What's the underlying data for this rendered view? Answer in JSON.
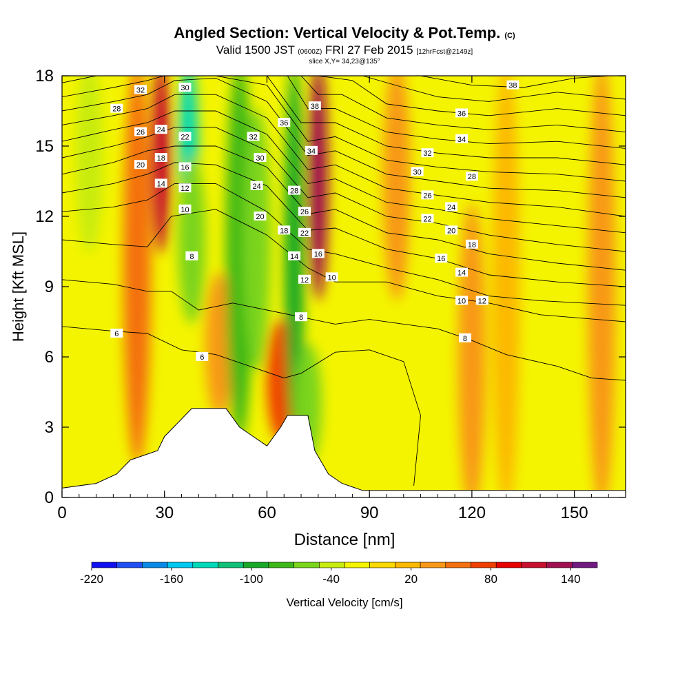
{
  "title": {
    "main": "Angled Section: Vertical Velocity & Pot.Temp.",
    "main_suffix": "(C)",
    "valid_a": "Valid 1500 JST",
    "valid_b": "(0600Z)",
    "valid_c": "FRI 27 Feb 2015",
    "valid_d": "[12hrFcst@2149z]",
    "slice": "slice X,Y= 34,23@135°"
  },
  "chart_data": {
    "type": "heatmap",
    "xlabel": "Distance [nm]",
    "ylabel": "Height [Kft MSL]",
    "xlim": [
      0,
      165
    ],
    "ylim": [
      0,
      18
    ],
    "x_ticks": [
      0,
      30,
      60,
      90,
      120,
      150
    ],
    "y_ticks": [
      0,
      3,
      6,
      9,
      12,
      15,
      18
    ],
    "colorbar": {
      "label": "Vertical Velocity [cm/s]",
      "min": -220,
      "max": 160,
      "step": 20,
      "tick_labels": [
        -220,
        -160,
        -100,
        -40,
        20,
        80,
        140
      ],
      "colors": [
        "#1010f0",
        "#1f4ff5",
        "#0a8ae8",
        "#00c8f0",
        "#00d8b8",
        "#10c078",
        "#18a828",
        "#3cb818",
        "#7ad41a",
        "#c8ec10",
        "#f4f400",
        "#fdd800",
        "#fcb800",
        "#f89818",
        "#f47010",
        "#f04000",
        "#e80000",
        "#c8102e",
        "#a01050",
        "#701a80"
      ]
    },
    "velocity_bands": [
      {
        "x_center": 8,
        "value": -40,
        "z_min": 11,
        "z_max": 18
      },
      {
        "x_center": 22,
        "value": 60,
        "z_min": 2,
        "z_max": 18
      },
      {
        "x_center": 29,
        "value": 120,
        "z_min": 11,
        "z_max": 18
      },
      {
        "x_center": 37,
        "value": -140,
        "z_min": 12,
        "z_max": 18
      },
      {
        "x_center": 38,
        "value": -60,
        "z_min": 8,
        "z_max": 14
      },
      {
        "x_center": 46,
        "value": 40,
        "z_min": 4,
        "z_max": 9
      },
      {
        "x_center": 52,
        "value": -80,
        "z_min": 3,
        "z_max": 18
      },
      {
        "x_center": 57,
        "value": -60,
        "z_min": 6,
        "z_max": 16
      },
      {
        "x_center": 64,
        "value": 80,
        "z_min": 3,
        "z_max": 7
      },
      {
        "x_center": 68,
        "value": -100,
        "z_min": 3,
        "z_max": 18
      },
      {
        "x_center": 75,
        "value": 140,
        "z_min": 9,
        "z_max": 18
      },
      {
        "x_center": 72,
        "value": -60,
        "z_min": 2,
        "z_max": 6
      },
      {
        "x_center": 98,
        "value": 40,
        "z_min": 9,
        "z_max": 18
      },
      {
        "x_center": 108,
        "value": -20,
        "z_min": 7,
        "z_max": 14
      },
      {
        "x_center": 120,
        "value": 40,
        "z_min": 0,
        "z_max": 12
      },
      {
        "x_center": 130,
        "value": 20,
        "z_min": 0,
        "z_max": 18
      },
      {
        "x_center": 142,
        "value": -20,
        "z_min": 4,
        "z_max": 7
      },
      {
        "x_center": 158,
        "value": 40,
        "z_min": 0,
        "z_max": 18
      }
    ],
    "terrain": [
      [
        0,
        0.4
      ],
      [
        10,
        0.6
      ],
      [
        16,
        1.0
      ],
      [
        20,
        1.6
      ],
      [
        28,
        2.0
      ],
      [
        30,
        2.6
      ],
      [
        34,
        3.2
      ],
      [
        38,
        3.8
      ],
      [
        48,
        3.8
      ],
      [
        52,
        3.0
      ],
      [
        56,
        2.6
      ],
      [
        60,
        2.2
      ],
      [
        64,
        3.0
      ],
      [
        66,
        3.5
      ],
      [
        72,
        3.5
      ],
      [
        74,
        2.0
      ],
      [
        78,
        1.0
      ],
      [
        82,
        0.6
      ],
      [
        88,
        0.3
      ],
      [
        165,
        0.3
      ]
    ],
    "theta_contours": [
      {
        "value": "6",
        "points": [
          [
            0,
            7.3
          ],
          [
            15,
            7.1
          ],
          [
            25,
            7.0
          ],
          [
            35,
            6.3
          ],
          [
            45,
            6.1
          ],
          [
            55,
            5.6
          ],
          [
            65,
            5.1
          ],
          [
            70,
            5.3
          ],
          [
            80,
            6.2
          ],
          [
            90,
            6.3
          ],
          [
            100,
            5.8
          ],
          [
            105,
            3.5
          ],
          [
            103,
            0.5
          ]
        ]
      },
      {
        "value": "8",
        "points": [
          [
            0,
            9.3
          ],
          [
            15,
            9.1
          ],
          [
            25,
            8.8
          ],
          [
            32,
            8.8
          ],
          [
            40,
            8.0
          ],
          [
            50,
            8.3
          ],
          [
            60,
            8.0
          ],
          [
            70,
            7.7
          ],
          [
            80,
            7.4
          ],
          [
            90,
            7.6
          ],
          [
            100,
            7.4
          ],
          [
            110,
            7.2
          ],
          [
            120,
            6.7
          ],
          [
            130,
            6.1
          ],
          [
            145,
            5.6
          ],
          [
            155,
            5.1
          ],
          [
            165,
            5.0
          ]
        ]
      },
      {
        "value": "10",
        "points": [
          [
            0,
            11.0
          ],
          [
            15,
            10.8
          ],
          [
            25,
            10.7
          ],
          [
            32,
            12.0
          ],
          [
            45,
            12.3
          ],
          [
            60,
            11.2
          ],
          [
            72,
            9.8
          ],
          [
            80,
            9.2
          ],
          [
            95,
            9.2
          ],
          [
            110,
            8.6
          ],
          [
            125,
            8.3
          ],
          [
            140,
            7.8
          ],
          [
            165,
            7.5
          ]
        ]
      },
      {
        "value": "12",
        "points": [
          [
            0,
            12.2
          ],
          [
            15,
            12.4
          ],
          [
            25,
            12.7
          ],
          [
            33,
            13.4
          ],
          [
            45,
            13.4
          ],
          [
            60,
            12.2
          ],
          [
            72,
            10.6
          ],
          [
            80,
            10.4
          ],
          [
            95,
            9.8
          ],
          [
            110,
            9.3
          ],
          [
            125,
            8.6
          ],
          [
            140,
            8.4
          ],
          [
            165,
            8.2
          ]
        ]
      },
      {
        "value": "14",
        "points": [
          [
            0,
            13.0
          ],
          [
            15,
            13.4
          ],
          [
            25,
            13.8
          ],
          [
            33,
            14.3
          ],
          [
            45,
            14.2
          ],
          [
            60,
            13.3
          ],
          [
            72,
            11.4
          ],
          [
            80,
            11.5
          ],
          [
            95,
            10.6
          ],
          [
            110,
            10.2
          ],
          [
            125,
            9.5
          ],
          [
            145,
            9.2
          ],
          [
            165,
            9.0
          ]
        ]
      },
      {
        "value": "16",
        "points": [
          [
            0,
            13.8
          ],
          [
            15,
            14.3
          ],
          [
            25,
            14.8
          ],
          [
            33,
            15.0
          ],
          [
            45,
            15.0
          ],
          [
            60,
            14.1
          ],
          [
            72,
            12.1
          ],
          [
            80,
            12.3
          ],
          [
            95,
            11.3
          ],
          [
            110,
            11.0
          ],
          [
            125,
            10.4
          ],
          [
            145,
            10.0
          ],
          [
            165,
            9.7
          ]
        ]
      },
      {
        "value": "18",
        "points": [
          [
            0,
            14.5
          ],
          [
            15,
            15.0
          ],
          [
            25,
            15.4
          ],
          [
            33,
            15.8
          ],
          [
            45,
            15.8
          ],
          [
            60,
            14.8
          ],
          [
            72,
            12.8
          ],
          [
            80,
            13.0
          ],
          [
            95,
            12.0
          ],
          [
            110,
            11.7
          ],
          [
            125,
            11.2
          ],
          [
            145,
            10.8
          ],
          [
            165,
            10.5
          ]
        ]
      },
      {
        "value": "20",
        "points": [
          [
            0,
            15.2
          ],
          [
            15,
            15.7
          ],
          [
            25,
            16.0
          ],
          [
            33,
            16.5
          ],
          [
            45,
            16.5
          ],
          [
            60,
            15.5
          ],
          [
            72,
            13.4
          ],
          [
            80,
            13.6
          ],
          [
            95,
            12.6
          ],
          [
            110,
            12.3
          ],
          [
            125,
            11.9
          ],
          [
            145,
            11.6
          ],
          [
            165,
            11.3
          ]
        ]
      },
      {
        "value": "22",
        "points": [
          [
            0,
            15.9
          ],
          [
            15,
            16.3
          ],
          [
            25,
            16.6
          ],
          [
            33,
            17.2
          ],
          [
            45,
            17.2
          ],
          [
            60,
            16.2
          ],
          [
            72,
            14.0
          ],
          [
            80,
            14.2
          ],
          [
            95,
            13.2
          ],
          [
            110,
            12.9
          ],
          [
            125,
            12.6
          ],
          [
            145,
            12.4
          ],
          [
            165,
            12.0
          ]
        ]
      },
      {
        "value": "24",
        "points": [
          [
            0,
            16.5
          ],
          [
            15,
            16.9
          ],
          [
            25,
            17.2
          ],
          [
            33,
            17.8
          ],
          [
            45,
            17.9
          ],
          [
            60,
            16.9
          ],
          [
            72,
            14.6
          ],
          [
            80,
            14.8
          ],
          [
            95,
            13.8
          ],
          [
            110,
            13.5
          ],
          [
            125,
            13.2
          ],
          [
            145,
            13.1
          ],
          [
            165,
            12.8
          ]
        ]
      },
      {
        "value": "26",
        "points": [
          [
            0,
            17.1
          ],
          [
            15,
            17.5
          ],
          [
            25,
            17.8
          ],
          [
            30,
            18.0
          ],
          [
            45,
            18.0
          ],
          [
            60,
            17.6
          ],
          [
            72,
            15.2
          ],
          [
            80,
            15.4
          ],
          [
            95,
            14.4
          ],
          [
            110,
            14.1
          ],
          [
            125,
            13.9
          ],
          [
            145,
            13.8
          ],
          [
            165,
            13.5
          ]
        ]
      },
      {
        "value": "28",
        "points": [
          [
            0,
            17.7
          ],
          [
            10,
            18.0
          ],
          [
            60,
            18.0
          ],
          [
            70,
            16.0
          ],
          [
            80,
            16.0
          ],
          [
            95,
            15.0
          ],
          [
            110,
            14.7
          ],
          [
            125,
            14.5
          ],
          [
            145,
            14.5
          ],
          [
            165,
            14.2
          ]
        ]
      },
      {
        "value": "30",
        "points": [
          [
            66,
            18.0
          ],
          [
            72,
            16.6
          ],
          [
            80,
            16.6
          ],
          [
            95,
            15.6
          ],
          [
            110,
            15.3
          ],
          [
            125,
            15.1
          ],
          [
            145,
            15.2
          ],
          [
            165,
            14.9
          ]
        ]
      },
      {
        "value": "32",
        "points": [
          [
            70,
            18.0
          ],
          [
            75,
            17.2
          ],
          [
            82,
            17.2
          ],
          [
            95,
            16.2
          ],
          [
            110,
            15.9
          ],
          [
            125,
            15.7
          ],
          [
            145,
            15.9
          ],
          [
            165,
            15.6
          ]
        ]
      },
      {
        "value": "34",
        "points": [
          [
            75,
            18.0
          ],
          [
            85,
            17.8
          ],
          [
            95,
            16.8
          ],
          [
            110,
            16.5
          ],
          [
            125,
            16.3
          ],
          [
            145,
            16.6
          ],
          [
            165,
            16.3
          ]
        ]
      },
      {
        "value": "36",
        "points": [
          [
            88,
            18.0
          ],
          [
            100,
            17.5
          ],
          [
            110,
            17.1
          ],
          [
            125,
            16.9
          ],
          [
            145,
            17.3
          ],
          [
            165,
            17.0
          ]
        ]
      },
      {
        "value": "38",
        "points": [
          [
            105,
            18.0
          ],
          [
            120,
            17.6
          ],
          [
            135,
            17.5
          ],
          [
            150,
            17.9
          ],
          [
            160,
            18.0
          ]
        ]
      }
    ],
    "contour_labels": [
      {
        "text": "32",
        "x": 23,
        "z": 17.4
      },
      {
        "text": "30",
        "x": 36,
        "z": 17.5
      },
      {
        "text": "28",
        "x": 16,
        "z": 16.6
      },
      {
        "text": "26",
        "x": 23,
        "z": 15.6
      },
      {
        "text": "24",
        "x": 29,
        "z": 15.7
      },
      {
        "text": "22",
        "x": 36,
        "z": 15.4
      },
      {
        "text": "20",
        "x": 23,
        "z": 14.2
      },
      {
        "text": "18",
        "x": 29,
        "z": 14.5
      },
      {
        "text": "16",
        "x": 36,
        "z": 14.1
      },
      {
        "text": "14",
        "x": 29,
        "z": 13.4
      },
      {
        "text": "12",
        "x": 36,
        "z": 13.2
      },
      {
        "text": "10",
        "x": 36,
        "z": 12.3
      },
      {
        "text": "8",
        "x": 38,
        "z": 10.3
      },
      {
        "text": "6",
        "x": 16,
        "z": 7.0
      },
      {
        "text": "6",
        "x": 41,
        "z": 6.0
      },
      {
        "text": "38",
        "x": 74,
        "z": 16.7
      },
      {
        "text": "36",
        "x": 65,
        "z": 16.0
      },
      {
        "text": "34",
        "x": 73,
        "z": 14.8
      },
      {
        "text": "32",
        "x": 56,
        "z": 15.4
      },
      {
        "text": "30",
        "x": 58,
        "z": 14.5
      },
      {
        "text": "28",
        "x": 68,
        "z": 13.1
      },
      {
        "text": "26",
        "x": 71,
        "z": 12.2
      },
      {
        "text": "24",
        "x": 57,
        "z": 13.3
      },
      {
        "text": "22",
        "x": 71,
        "z": 11.3
      },
      {
        "text": "20",
        "x": 58,
        "z": 12.0
      },
      {
        "text": "18",
        "x": 65,
        "z": 11.4
      },
      {
        "text": "14",
        "x": 68,
        "z": 10.3
      },
      {
        "text": "16",
        "x": 75,
        "z": 10.4
      },
      {
        "text": "12",
        "x": 71,
        "z": 9.3
      },
      {
        "text": "10",
        "x": 79,
        "z": 9.4
      },
      {
        "text": "8",
        "x": 70,
        "z": 7.7
      },
      {
        "text": "38",
        "x": 132,
        "z": 17.6
      },
      {
        "text": "36",
        "x": 117,
        "z": 16.4
      },
      {
        "text": "34",
        "x": 117,
        "z": 15.3
      },
      {
        "text": "32",
        "x": 107,
        "z": 14.7
      },
      {
        "text": "30",
        "x": 104,
        "z": 13.9
      },
      {
        "text": "28",
        "x": 120,
        "z": 13.7
      },
      {
        "text": "26",
        "x": 107,
        "z": 12.9
      },
      {
        "text": "24",
        "x": 114,
        "z": 12.4
      },
      {
        "text": "22",
        "x": 107,
        "z": 11.9
      },
      {
        "text": "20",
        "x": 114,
        "z": 11.4
      },
      {
        "text": "18",
        "x": 120,
        "z": 10.8
      },
      {
        "text": "16",
        "x": 111,
        "z": 10.2
      },
      {
        "text": "14",
        "x": 117,
        "z": 9.6
      },
      {
        "text": "10",
        "x": 117,
        "z": 8.4
      },
      {
        "text": "12",
        "x": 123,
        "z": 8.4
      },
      {
        "text": "8",
        "x": 118,
        "z": 6.8
      }
    ]
  }
}
